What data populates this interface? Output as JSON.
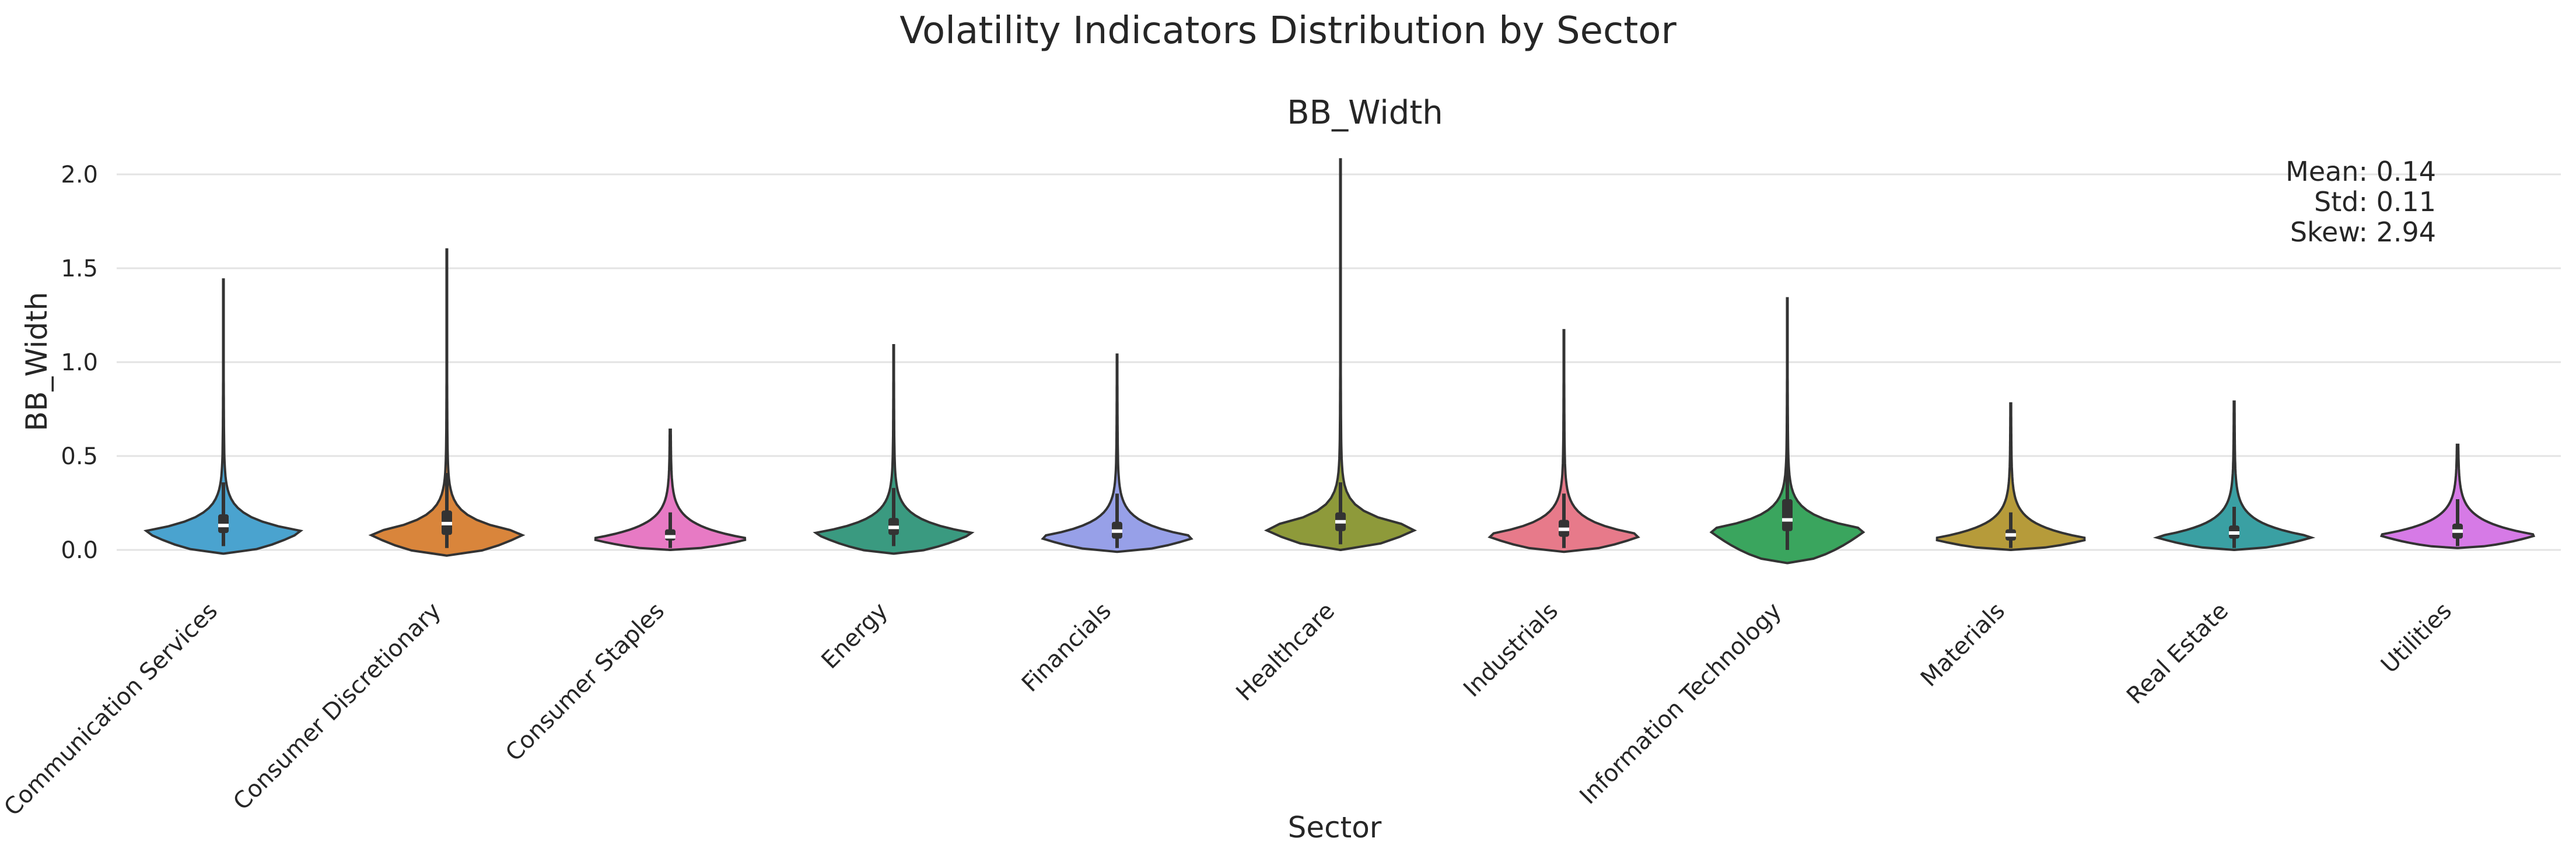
{
  "chart_data": {
    "type": "violin",
    "title": "Volatility Indicators Distribution by Sector",
    "subtitle": "BB_Width",
    "xlabel": "Sector",
    "ylabel": "BB_Width",
    "ylim": [
      -0.07,
      2.1
    ],
    "yticks": [
      "0.0",
      "0.5",
      "1.0",
      "1.5",
      "2.0"
    ],
    "ytick_values": [
      0.0,
      0.5,
      1.0,
      1.5,
      2.0
    ],
    "grid": true,
    "annotation": {
      "mean_label": "Mean: 0.14",
      "std_label": "Std: 0.11",
      "skew_label": "Skew: 2.94"
    },
    "categories": [
      "Communication Services",
      "Consumer Discretionary",
      "Consumer Staples",
      "Energy",
      "Financials",
      "Healthcare",
      "Industrials",
      "Information Technology",
      "Materials",
      "Real Estate",
      "Utilities"
    ],
    "series": [
      {
        "category": "Communication Services",
        "color": "#4aa3cf",
        "min": -0.02,
        "max": 1.44,
        "q1": 0.09,
        "median": 0.13,
        "q3": 0.19,
        "whisker_low": 0.02,
        "whisker_high": 0.36,
        "peak": 0.1,
        "width": 0.9
      },
      {
        "category": "Consumer Discretionary",
        "color": "#d9853b",
        "min": -0.03,
        "max": 1.6,
        "q1": 0.08,
        "median": 0.14,
        "q3": 0.21,
        "whisker_low": 0.01,
        "whisker_high": 0.41,
        "peak": 0.09,
        "width": 0.9
      },
      {
        "category": "Consumer Staples",
        "color": "#e77ac4",
        "min": 0.0,
        "max": 0.64,
        "q1": 0.05,
        "median": 0.07,
        "q3": 0.11,
        "whisker_low": 0.01,
        "whisker_high": 0.2,
        "peak": 0.06,
        "width": 0.9
      },
      {
        "category": "Energy",
        "color": "#3a9a80",
        "min": -0.02,
        "max": 1.09,
        "q1": 0.08,
        "median": 0.12,
        "q3": 0.17,
        "whisker_low": 0.02,
        "whisker_high": 0.33,
        "peak": 0.09,
        "width": 0.9
      },
      {
        "category": "Financials",
        "color": "#97a0e8",
        "min": -0.01,
        "max": 1.04,
        "q1": 0.06,
        "median": 0.1,
        "q3": 0.15,
        "whisker_low": 0.01,
        "whisker_high": 0.3,
        "peak": 0.07,
        "width": 0.9
      },
      {
        "category": "Healthcare",
        "color": "#8e9a3a",
        "min": 0.0,
        "max": 2.08,
        "q1": 0.1,
        "median": 0.15,
        "q3": 0.2,
        "whisker_low": 0.03,
        "whisker_high": 0.36,
        "peak": 0.12,
        "width": 0.9
      },
      {
        "category": "Industrials",
        "color": "#e77a8a",
        "min": -0.01,
        "max": 1.17,
        "q1": 0.07,
        "median": 0.11,
        "q3": 0.16,
        "whisker_low": 0.01,
        "whisker_high": 0.3,
        "peak": 0.08,
        "width": 0.9
      },
      {
        "category": "Information Technology",
        "color": "#3aa55e",
        "min": -0.07,
        "max": 1.34,
        "q1": 0.1,
        "median": 0.16,
        "q3": 0.27,
        "whisker_low": 0.0,
        "whisker_high": 0.54,
        "peak": 0.11,
        "width": 0.9
      },
      {
        "category": "Materials",
        "color": "#b69b3a",
        "min": 0.0,
        "max": 0.78,
        "q1": 0.05,
        "median": 0.08,
        "q3": 0.11,
        "whisker_low": 0.01,
        "whisker_high": 0.2,
        "peak": 0.06,
        "width": 0.9
      },
      {
        "category": "Real Estate",
        "color": "#3aa0a3",
        "min": 0.0,
        "max": 0.79,
        "q1": 0.06,
        "median": 0.09,
        "q3": 0.13,
        "whisker_low": 0.01,
        "whisker_high": 0.23,
        "peak": 0.07,
        "width": 0.9
      },
      {
        "category": "Utilities",
        "color": "#d67ae6",
        "min": 0.01,
        "max": 0.56,
        "q1": 0.06,
        "median": 0.1,
        "q3": 0.14,
        "whisker_low": 0.02,
        "whisker_high": 0.27,
        "peak": 0.08,
        "width": 0.9
      }
    ]
  }
}
